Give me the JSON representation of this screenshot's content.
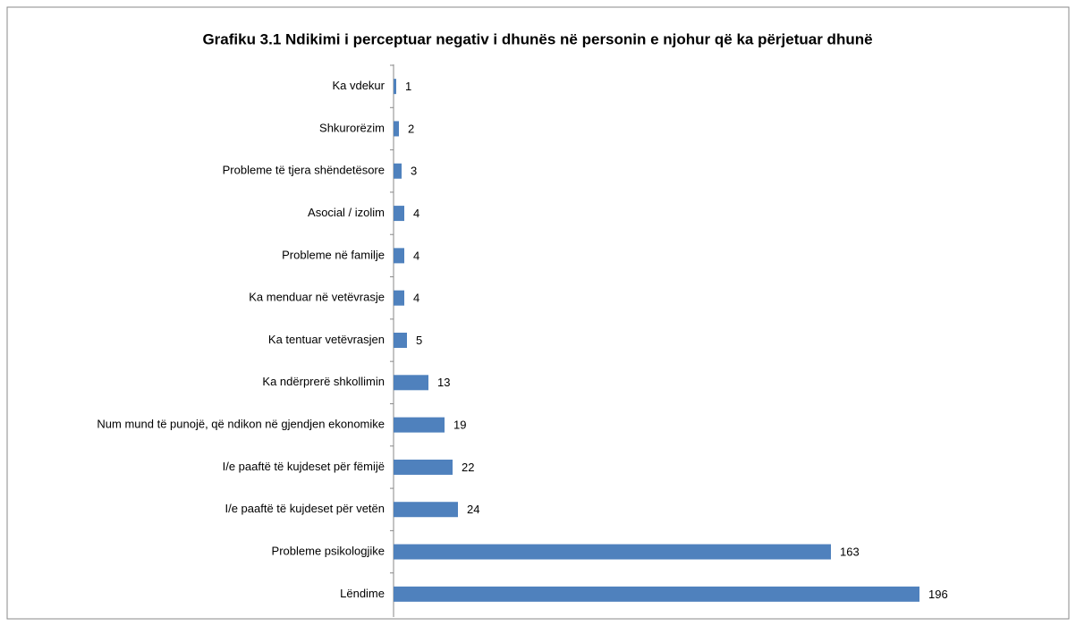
{
  "chart_data": {
    "type": "hbar",
    "title": "Grafiku 3.1 Ndikimi i perceptuar negativ i dhunës në personin e njohur që ka përjetuar dhunë",
    "categories": [
      "Ka vdekur",
      "Shkurorëzim",
      "Probleme të tjera shëndetësore",
      "Asocial / izolim",
      "Probleme në familje",
      "Ka menduar në vetëvrasje",
      "Ka tentuar vetëvrasjen",
      "Ka ndërprerë shkollimin",
      "Num mund të punojë, që ndikon në gjendjen ekonomike",
      "I/e paaftë të kujdeset për fëmijë",
      "I/e paaftë të kujdeset për vetën",
      "Probleme psikologjike",
      "Lëndime"
    ],
    "values": [
      1,
      2,
      3,
      4,
      4,
      4,
      5,
      13,
      19,
      22,
      24,
      163,
      196
    ],
    "color": "#4f81bd",
    "xlim": [
      0,
      200
    ]
  }
}
